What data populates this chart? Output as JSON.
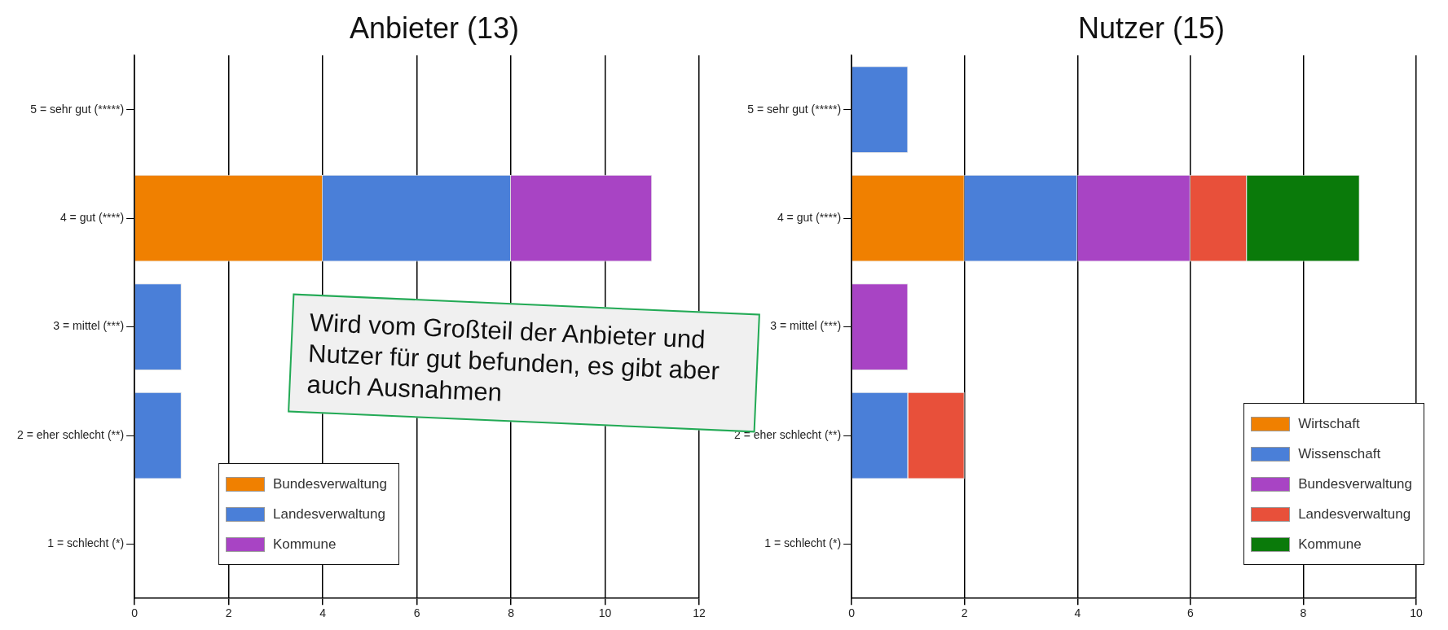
{
  "chart_data": [
    {
      "type": "bar",
      "title": "Anbieter (13)",
      "orientation": "horizontal",
      "stacked": true,
      "grid": "x",
      "legend": "bottom",
      "categories": [
        "5 = sehr gut (*****)",
        "4 = gut (****)",
        "3 = mittel (***)",
        "2 = eher schlecht (**)",
        "1 = schlecht (*)"
      ],
      "xlim": [
        0,
        12
      ],
      "xticks": [
        0,
        2,
        4,
        6,
        8,
        10,
        12
      ],
      "series": [
        {
          "name": "Bundesverwaltung",
          "color": "#f08000",
          "values": [
            0,
            4,
            0,
            0,
            0
          ]
        },
        {
          "name": "Landesverwaltung",
          "color": "#4a7fd8",
          "values": [
            0,
            4,
            1,
            1,
            0
          ]
        },
        {
          "name": "Kommune",
          "color": "#a844c4",
          "values": [
            0,
            3,
            0,
            0,
            0
          ]
        }
      ],
      "annotations": [
        "Wird vom Großteil der Anbieter und Nutzer für gut befunden, es gibt aber auch Ausnahmen"
      ]
    },
    {
      "type": "bar",
      "title": "Nutzer (15)",
      "orientation": "horizontal",
      "stacked": true,
      "grid": "x",
      "legend": "bottom right",
      "categories": [
        "5 = sehr gut (*****)",
        "4 = gut (****)",
        "3 = mittel (***)",
        "2 = eher schlecht (**)",
        "1 = schlecht (*)"
      ],
      "xlim": [
        0,
        10
      ],
      "xticks": [
        0,
        2,
        4,
        6,
        8,
        10
      ],
      "series": [
        {
          "name": "Wirtschaft",
          "color": "#f08000",
          "values": [
            0,
            2,
            0,
            0,
            0
          ]
        },
        {
          "name": "Wissenschaft",
          "color": "#4a7fd8",
          "values": [
            1,
            2,
            0,
            1,
            0
          ]
        },
        {
          "name": "Bundesverwaltung",
          "color": "#a844c4",
          "values": [
            0,
            2,
            1,
            0,
            0
          ]
        },
        {
          "name": "Landesverwaltung",
          "color": "#e8503a",
          "values": [
            0,
            1,
            0,
            1,
            0
          ]
        },
        {
          "name": "Kommune",
          "color": "#0a7a0a",
          "values": [
            0,
            2,
            0,
            0,
            0
          ]
        }
      ]
    }
  ]
}
